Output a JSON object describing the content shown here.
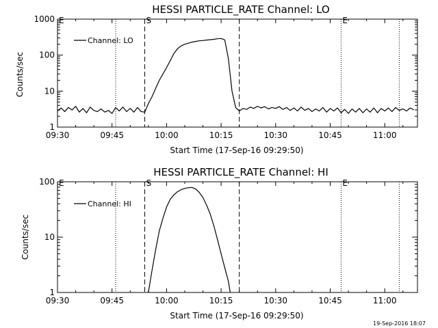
{
  "chart_data": [
    {
      "type": "line",
      "title": "HESSI PARTICLE_RATE Channel: LO",
      "xlabel": "Start Time (17-Sep-16 09:29:50)",
      "ylabel": "Counts/sec",
      "yscale": "log",
      "ylim": [
        1,
        1000
      ],
      "ytick_labels": [
        "1",
        "10",
        "100",
        "1000"
      ],
      "xlim": [
        "09:30",
        "11:09"
      ],
      "xtick_labels": [
        "09:30",
        "09:45",
        "10:00",
        "10:15",
        "10:30",
        "10:45",
        "11:00"
      ],
      "grid": false,
      "legend": {
        "position": "top-left",
        "entries": [
          "Channel: LO"
        ]
      },
      "markers": [
        {
          "label": "E",
          "time": "09:30",
          "style": "dotted"
        },
        {
          "label": "",
          "time": "09:46",
          "style": "dotted"
        },
        {
          "label": "S",
          "time": "09:54",
          "style": "dashed"
        },
        {
          "label": "",
          "time": "10:20",
          "style": "dashed"
        },
        {
          "label": "E",
          "time": "10:48",
          "style": "dotted"
        },
        {
          "label": "",
          "time": "11:04",
          "style": "dotted"
        }
      ],
      "series": [
        {
          "name": "Channel: LO",
          "points": [
            [
              "09:30",
              2.8
            ],
            [
              "09:31",
              3.4
            ],
            [
              "09:32",
              2.7
            ],
            [
              "09:33",
              3.5
            ],
            [
              "09:34",
              3.0
            ],
            [
              "09:35",
              3.8
            ],
            [
              "09:36",
              2.6
            ],
            [
              "09:37",
              3.3
            ],
            [
              "09:38",
              2.5
            ],
            [
              "09:39",
              3.6
            ],
            [
              "09:40",
              2.9
            ],
            [
              "09:41",
              2.7
            ],
            [
              "09:42",
              3.2
            ],
            [
              "09:43",
              2.6
            ],
            [
              "09:44",
              2.9
            ],
            [
              "09:45",
              2.4
            ],
            [
              "09:46",
              3.5
            ],
            [
              "09:47",
              2.8
            ],
            [
              "09:48",
              3.6
            ],
            [
              "09:49",
              2.7
            ],
            [
              "09:50",
              3.3
            ],
            [
              "09:51",
              2.6
            ],
            [
              "09:52",
              3.5
            ],
            [
              "09:53",
              2.7
            ],
            [
              "09:54",
              2.6
            ],
            [
              "09:55",
              4.5
            ],
            [
              "09:56",
              7
            ],
            [
              "09:57",
              12
            ],
            [
              "09:58",
              20
            ],
            [
              "09:59",
              30
            ],
            [
              "10:00",
              45
            ],
            [
              "10:01",
              70
            ],
            [
              "10:02",
              110
            ],
            [
              "10:03",
              150
            ],
            [
              "10:04",
              180
            ],
            [
              "10:05",
              200
            ],
            [
              "10:06",
              215
            ],
            [
              "10:07",
              230
            ],
            [
              "10:08",
              240
            ],
            [
              "10:09",
              250
            ],
            [
              "10:10",
              255
            ],
            [
              "10:11",
              262
            ],
            [
              "10:12",
              268
            ],
            [
              "10:13",
              275
            ],
            [
              "10:14",
              285
            ],
            [
              "10:15",
              290
            ],
            [
              "10:16",
              265
            ],
            [
              "10:17",
              80
            ],
            [
              "10:18",
              10
            ],
            [
              "10:19",
              3.5
            ],
            [
              "10:20",
              2.8
            ],
            [
              "10:21",
              3.3
            ],
            [
              "10:22",
              3.1
            ],
            [
              "10:23",
              3.6
            ],
            [
              "10:24",
              3.3
            ],
            [
              "10:25",
              3.8
            ],
            [
              "10:26",
              3.4
            ],
            [
              "10:27",
              3.7
            ],
            [
              "10:28",
              3.2
            ],
            [
              "10:29",
              3.5
            ],
            [
              "10:30",
              3.3
            ],
            [
              "10:31",
              3.7
            ],
            [
              "10:32",
              3.1
            ],
            [
              "10:33",
              3.5
            ],
            [
              "10:34",
              2.9
            ],
            [
              "10:35",
              3.4
            ],
            [
              "10:36",
              2.8
            ],
            [
              "10:37",
              3.6
            ],
            [
              "10:38",
              2.9
            ],
            [
              "10:39",
              3.3
            ],
            [
              "10:40",
              2.7
            ],
            [
              "10:41",
              3.2
            ],
            [
              "10:42",
              2.8
            ],
            [
              "10:43",
              3.5
            ],
            [
              "10:44",
              2.6
            ],
            [
              "10:45",
              3.3
            ],
            [
              "10:46",
              2.8
            ],
            [
              "10:47",
              3.4
            ],
            [
              "10:48",
              2.5
            ],
            [
              "10:49",
              3.1
            ],
            [
              "10:50",
              2.4
            ],
            [
              "10:51",
              3.2
            ],
            [
              "10:52",
              2.6
            ],
            [
              "10:53",
              3.3
            ],
            [
              "10:54",
              2.5
            ],
            [
              "10:55",
              3.2
            ],
            [
              "10:56",
              2.6
            ],
            [
              "10:57",
              3.4
            ],
            [
              "10:58",
              2.5
            ],
            [
              "10:59",
              3.3
            ],
            [
              "11:00",
              2.8
            ],
            [
              "11:01",
              3.4
            ],
            [
              "11:02",
              2.7
            ],
            [
              "11:03",
              3.5
            ],
            [
              "11:04",
              2.9
            ],
            [
              "11:05",
              3.2
            ],
            [
              "11:06",
              2.8
            ],
            [
              "11:07",
              3.4
            ],
            [
              "11:08",
              3.0
            ]
          ]
        }
      ]
    },
    {
      "type": "line",
      "title": "HESSI PARTICLE_RATE Channel: HI",
      "xlabel": "Start Time (17-Sep-16 09:29:50)",
      "ylabel": "Counts/sec",
      "yscale": "log",
      "ylim": [
        1,
        100
      ],
      "ytick_labels": [
        "1",
        "10",
        "100"
      ],
      "xlim": [
        "09:30",
        "11:09"
      ],
      "xtick_labels": [
        "09:30",
        "09:45",
        "10:00",
        "10:15",
        "10:30",
        "10:45",
        "11:00"
      ],
      "grid": false,
      "legend": {
        "position": "top-left",
        "entries": [
          "Channel: HI"
        ]
      },
      "markers": [
        {
          "label": "E",
          "time": "09:30",
          "style": "dotted"
        },
        {
          "label": "",
          "time": "09:46",
          "style": "dotted"
        },
        {
          "label": "S",
          "time": "09:54",
          "style": "dashed"
        },
        {
          "label": "",
          "time": "10:20",
          "style": "dashed"
        },
        {
          "label": "E",
          "time": "10:48",
          "style": "dotted"
        },
        {
          "label": "",
          "time": "11:04",
          "style": "dotted"
        }
      ],
      "series": [
        {
          "name": "Channel: HI",
          "points": [
            [
              "09:55",
              1.0
            ],
            [
              "09:56",
              2.5
            ],
            [
              "09:57",
              6
            ],
            [
              "09:58",
              13
            ],
            [
              "09:59",
              22
            ],
            [
              "10:00",
              35
            ],
            [
              "10:01",
              48
            ],
            [
              "10:02",
              58
            ],
            [
              "10:03",
              66
            ],
            [
              "10:04",
              72
            ],
            [
              "10:05",
              76
            ],
            [
              "10:06",
              78
            ],
            [
              "10:07",
              79
            ],
            [
              "10:08",
              74
            ],
            [
              "10:09",
              64
            ],
            [
              "10:10",
              52
            ],
            [
              "10:11",
              38
            ],
            [
              "10:12",
              26
            ],
            [
              "10:13",
              16
            ],
            [
              "10:14",
              9
            ],
            [
              "10:15",
              5
            ],
            [
              "10:16",
              2.8
            ],
            [
              "10:17",
              1.6
            ],
            [
              "10:17.5",
              1.0
            ]
          ]
        }
      ]
    }
  ],
  "footer": {
    "timestamp": "19-Sep-2016 18:07"
  }
}
